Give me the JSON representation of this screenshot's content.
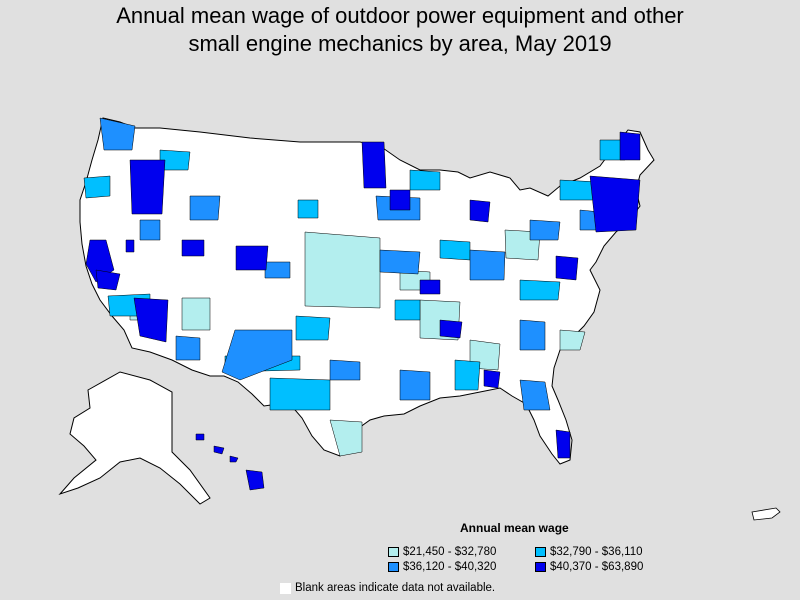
{
  "title_line1": "Annual mean wage of outdoor power equipment and other",
  "title_line2": "small engine mechanics by area, May 2019",
  "legend": {
    "title": "Annual mean wage",
    "items": [
      {
        "label": "$21,450 - $32,780",
        "color": "#b3eeee"
      },
      {
        "label": "$32,790 - $36,110",
        "color": "#00bfff"
      },
      {
        "label": "$36,120 - $40,320",
        "color": "#1e90ff"
      },
      {
        "label": "$40,370 - $63,890",
        "color": "#0000ee"
      }
    ]
  },
  "note": "Blank areas indicate data not available.",
  "colors": {
    "background": "#e0e0e0",
    "no_data": "#ffffff",
    "border": "#000000"
  }
}
